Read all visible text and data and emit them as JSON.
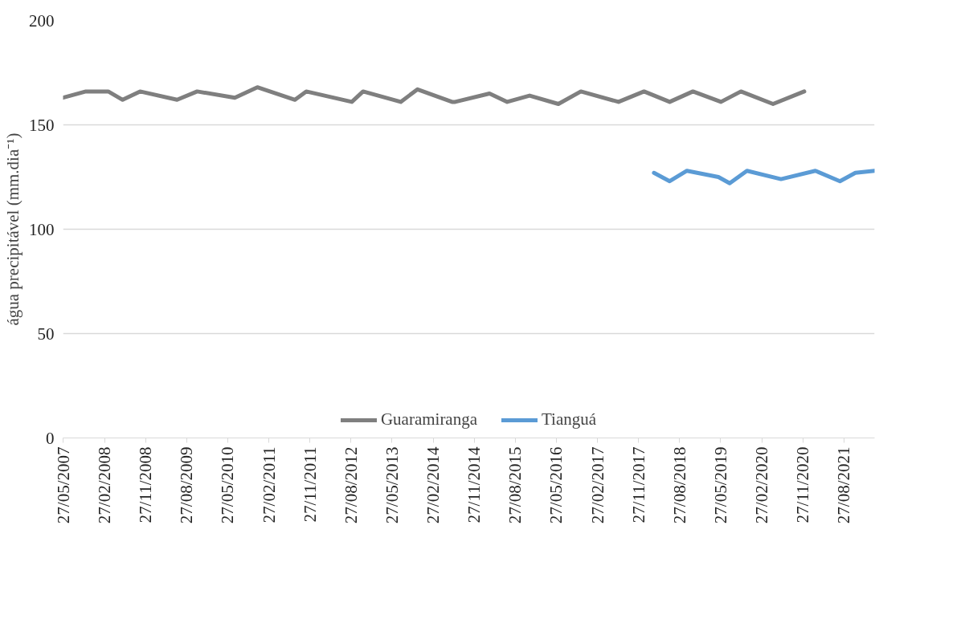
{
  "chart_data": {
    "type": "line",
    "ylabel": "água precipitável (mm.dia⁻¹)",
    "xlim": [
      "2007-05-27",
      "2022-03-19"
    ],
    "ylim": [
      0,
      200
    ],
    "yticks": [
      0,
      50,
      100,
      150,
      200
    ],
    "xticks": [
      {
        "value": "2007-05-27",
        "label": "27/05/2007"
      },
      {
        "value": "2008-02-27",
        "label": "27/02/2008"
      },
      {
        "value": "2008-11-27",
        "label": "27/11/2008"
      },
      {
        "value": "2009-08-27",
        "label": "27/08/2009"
      },
      {
        "value": "2010-05-27",
        "label": "27/05/2010"
      },
      {
        "value": "2011-02-27",
        "label": "27/02/2011"
      },
      {
        "value": "2011-11-27",
        "label": "27/11/2011"
      },
      {
        "value": "2012-08-27",
        "label": "27/08/2012"
      },
      {
        "value": "2013-05-27",
        "label": "27/05/2013"
      },
      {
        "value": "2014-02-27",
        "label": "27/02/2014"
      },
      {
        "value": "2014-11-27",
        "label": "27/11/2014"
      },
      {
        "value": "2015-08-27",
        "label": "27/08/2015"
      },
      {
        "value": "2016-05-27",
        "label": "27/05/2016"
      },
      {
        "value": "2017-02-27",
        "label": "27/02/2017"
      },
      {
        "value": "2017-11-27",
        "label": "27/11/2017"
      },
      {
        "value": "2018-08-27",
        "label": "27/08/2018"
      },
      {
        "value": "2019-05-27",
        "label": "27/05/2019"
      },
      {
        "value": "2020-02-27",
        "label": "27/02/2020"
      },
      {
        "value": "2020-11-27",
        "label": "27/11/2020"
      },
      {
        "value": "2021-08-27",
        "label": "27/08/2021"
      }
    ],
    "grid": "y",
    "legend": "bottom",
    "marker": "none",
    "line_style": "solid",
    "series": [
      {
        "name": "Guaramiranga",
        "color": "#7f7f7f",
        "x": [
          "2007-05-27",
          "2007-10-26",
          "2008-03-23",
          "2008-06-27",
          "2008-10-21",
          "2009-06-25",
          "2009-11-06",
          "2010-07-15",
          "2010-12-12",
          "2011-08-20",
          "2011-11-03",
          "2012-09-02",
          "2012-11-16",
          "2013-07-25",
          "2013-11-14",
          "2014-07-02",
          "2014-07-23",
          "2015-03-09",
          "2015-07-05",
          "2015-12-01",
          "2016-06-10",
          "2016-11-07",
          "2017-07-16",
          "2018-01-02",
          "2018-06-22",
          "2018-11-24",
          "2019-05-30",
          "2019-10-10",
          "2020-05-11",
          "2020-12-05"
        ],
        "values": [
          163,
          166,
          166,
          162,
          166,
          162,
          166,
          163,
          168,
          162,
          166,
          161,
          166,
          161,
          167,
          161,
          161,
          165,
          161,
          164,
          160,
          166,
          161,
          166,
          161,
          166,
          161,
          166,
          160,
          166
        ]
      },
      {
        "name": "Tianguá",
        "color": "#5b9bd5",
        "x": [
          "2018-03-09",
          "2018-06-22",
          "2018-10-15",
          "2019-05-13",
          "2019-07-27",
          "2019-11-19",
          "2020-07-03",
          "2021-02-17",
          "2021-07-31",
          "2021-11-11",
          "2022-03-19"
        ],
        "values": [
          127,
          123,
          128,
          125,
          122,
          128,
          124,
          128,
          123,
          127,
          128
        ]
      }
    ]
  }
}
